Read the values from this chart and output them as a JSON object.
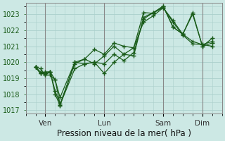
{
  "title": "",
  "xlabel": "Pression niveau de la mer( hPa )",
  "ylabel": "",
  "bg_color": "#cce8e4",
  "grid_color": "#aad0cc",
  "line_color": "#1a5c1a",
  "vline_color": "#888888",
  "ytick_color": "#1a5c1a",
  "xtick_color": "#333333",
  "ylim": [
    1016.8,
    1023.7
  ],
  "yticks": [
    1017,
    1018,
    1019,
    1020,
    1021,
    1022,
    1023
  ],
  "xlim": [
    -12,
    228
  ],
  "xtick_positions": [
    12,
    84,
    156,
    204
  ],
  "xtick_labels": [
    "Ven",
    "Lun",
    "Sam",
    "Dim"
  ],
  "vline_positions": [
    12,
    84,
    156,
    204
  ],
  "lines": [
    [
      1019.7,
      1019.6,
      1019.2,
      1019.2,
      1018.9,
      1017.35,
      1019.6,
      1019.9,
      1020.0,
      1019.3,
      1020.0,
      1020.5,
      1020.4,
      1022.8,
      1023.1,
      1023.4,
      1022.5,
      1021.7,
      1021.15,
      1021.1,
      1021.3
    ],
    [
      1019.7,
      1019.4,
      1019.2,
      1019.4,
      1018.9,
      1017.8,
      1020.0,
      1019.9,
      1020.0,
      1019.9,
      1020.5,
      1020.1,
      1020.6,
      1022.7,
      1023.1,
      1023.5,
      1022.2,
      1021.75,
      1023.0,
      1021.0,
      1021.5
    ],
    [
      1019.7,
      1019.3,
      1019.4,
      1019.4,
      1018.0,
      1017.3,
      1020.0,
      1020.2,
      1019.9,
      1020.4,
      1021.0,
      1020.5,
      1020.9,
      1023.1,
      1023.05,
      1023.5,
      1022.2,
      1021.75,
      1023.1,
      1021.0,
      1021.2
    ],
    [
      1019.7,
      1019.3,
      1019.3,
      1019.4,
      1018.2,
      1017.4,
      1019.9,
      1020.2,
      1020.8,
      1020.5,
      1021.2,
      1021.0,
      1020.9,
      1022.5,
      1022.9,
      1023.4,
      1022.6,
      1021.75,
      1021.3,
      1021.1,
      1021.0
    ]
  ],
  "x_hours": [
    0,
    6,
    12,
    18,
    24,
    30,
    48,
    60,
    72,
    84,
    96,
    108,
    120,
    132,
    144,
    156,
    168,
    180,
    192,
    204,
    216
  ]
}
